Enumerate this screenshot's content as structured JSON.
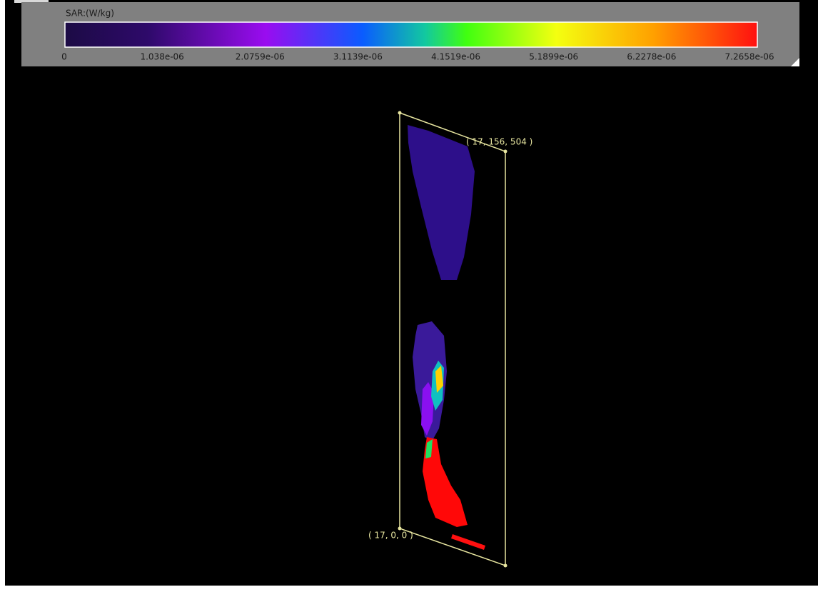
{
  "colorbar": {
    "title": "SAR:(W/kg)",
    "tick_labels": [
      "0",
      "1.038e-06",
      "2.0759e-06",
      "3.1139e-06",
      "4.1519e-06",
      "5.1899e-06",
      "6.2278e-06",
      "7.2658e-06"
    ]
  },
  "annotations": [
    "( 17, 156, 504 )",
    "( 17, 0, 0 )"
  ]
}
